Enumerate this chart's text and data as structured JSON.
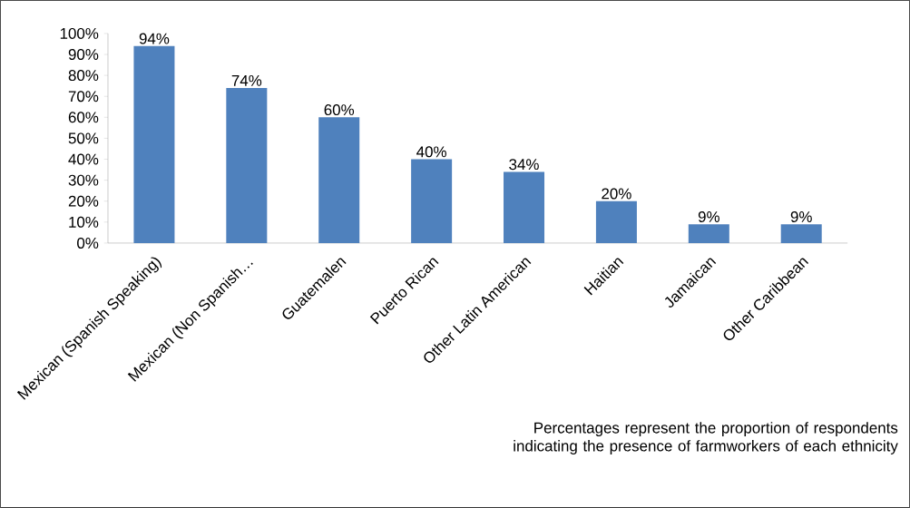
{
  "chart_data": {
    "type": "bar",
    "categories": [
      "Mexican (Spanish Speaking)",
      "Mexican (Non Spanish…",
      "Guatemalen",
      "Puerto Rican",
      "Other Latin American",
      "Haitian",
      "Jamaican",
      "Other Caribbean"
    ],
    "values": [
      94,
      74,
      60,
      40,
      34,
      20,
      9,
      9
    ],
    "value_labels": [
      "94%",
      "74%",
      "60%",
      "40%",
      "34%",
      "20%",
      "9%",
      "9%"
    ],
    "color": "#4f81bd",
    "ylim": [
      0,
      100
    ],
    "yticks": [
      {
        "value": 0,
        "label": "0%"
      },
      {
        "value": 10,
        "label": "10%"
      },
      {
        "value": 20,
        "label": "20%"
      },
      {
        "value": 30,
        "label": "30%"
      },
      {
        "value": 40,
        "label": "40%"
      },
      {
        "value": 50,
        "label": "50%"
      },
      {
        "value": 60,
        "label": "60%"
      },
      {
        "value": 70,
        "label": "70%"
      },
      {
        "value": 80,
        "label": "80%"
      },
      {
        "value": 90,
        "label": "90%"
      },
      {
        "value": 100,
        "label": "100%"
      }
    ],
    "annotations": [
      "Percentages represent the proportion of respondents indicating the presence of farmworkers of each ethnicity"
    ]
  }
}
